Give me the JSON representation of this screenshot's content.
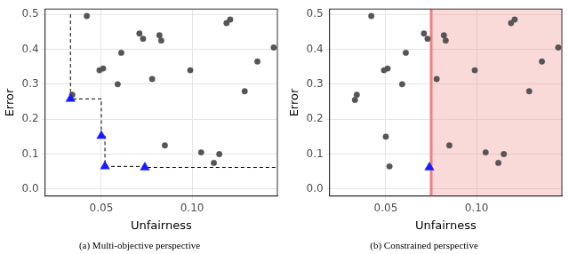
{
  "chart_data": [
    {
      "type": "scatter",
      "title": "(a) Multi-objective perspective",
      "x_label": "Unfairness",
      "y_label": "Error",
      "xlim": [
        0.019,
        0.147
      ],
      "ylim": [
        -0.02,
        0.515
      ],
      "xticks": [
        0.05,
        {
          "value": 0.1,
          "label": "0.10"
        }
      ],
      "yticks": [
        {
          "value": 0,
          "label": "0.0"
        },
        0.1,
        0.2,
        0.3,
        0.4,
        0.5
      ],
      "grid": true,
      "series": [
        {
          "type": "line",
          "color": "#000000",
          "line_style": "dashed",
          "x": [
            0.033,
            0.033,
            0.05,
            0.05,
            0.052,
            0.052,
            0.074,
            0.074,
            0.147
          ],
          "values": [
            0.5,
            0.258,
            0.258,
            0.152,
            0.152,
            0.065,
            0.065,
            0.062,
            0.062
          ]
        },
        {
          "color": "#555555",
          "marker": "circle",
          "x": [
            0.042,
            0.034,
            0.049,
            0.051,
            0.059,
            0.061,
            0.071,
            0.073,
            0.078,
            0.082,
            0.083,
            0.085,
            0.099,
            0.105,
            0.112,
            0.115,
            0.119,
            0.121,
            0.129,
            0.136,
            0.145
          ],
          "values": [
            0.495,
            0.27,
            0.34,
            0.345,
            0.3,
            0.39,
            0.445,
            0.43,
            0.315,
            0.44,
            0.425,
            0.125,
            0.34,
            0.105,
            0.075,
            0.1,
            0.475,
            0.485,
            0.28,
            0.365,
            0.405
          ]
        },
        {
          "color": "#1a1aff",
          "marker": "triangle",
          "x": [
            0.033,
            0.05,
            0.052,
            0.074
          ],
          "values": [
            0.258,
            0.152,
            0.065,
            0.062
          ]
        }
      ]
    },
    {
      "type": "scatter",
      "title": "(b) Constrained perspective",
      "x_label": "Unfairness",
      "y_label": "Error",
      "xlim": [
        0.019,
        0.147
      ],
      "ylim": [
        -0.02,
        0.515
      ],
      "xticks": [
        0.05,
        {
          "value": 0.1,
          "label": "0.10"
        }
      ],
      "yticks": [
        {
          "value": 0,
          "label": "0.0"
        },
        0.1,
        0.2,
        0.3,
        0.4,
        0.5
      ],
      "grid": true,
      "constraint": {
        "x": 0.075,
        "color": "#f08080"
      },
      "series": [
        {
          "color": "#555555",
          "marker": "circle",
          "x": [
            0.042,
            0.034,
            0.033,
            0.049,
            0.051,
            0.05,
            0.052,
            0.059,
            0.061,
            0.071,
            0.073,
            0.078,
            0.082,
            0.083,
            0.085,
            0.099,
            0.105,
            0.112,
            0.115,
            0.119,
            0.121,
            0.129,
            0.136,
            0.145
          ],
          "values": [
            0.495,
            0.27,
            0.255,
            0.34,
            0.345,
            0.15,
            0.065,
            0.3,
            0.39,
            0.445,
            0.43,
            0.315,
            0.44,
            0.425,
            0.125,
            0.34,
            0.105,
            0.075,
            0.1,
            0.475,
            0.485,
            0.28,
            0.365,
            0.405
          ]
        },
        {
          "color": "#1a1aff",
          "marker": "triangle",
          "x": [
            0.074
          ],
          "values": [
            0.062
          ]
        }
      ]
    }
  ]
}
